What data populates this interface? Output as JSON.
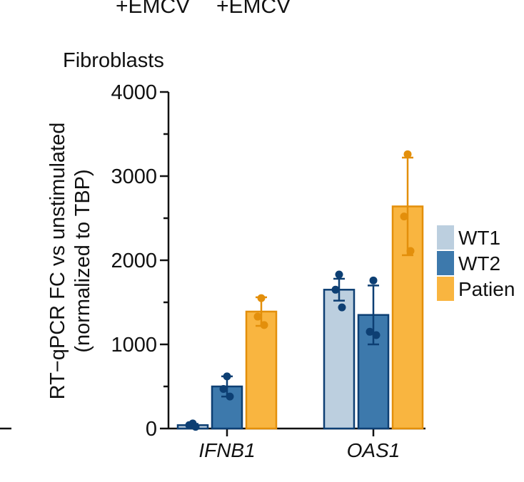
{
  "header_fragment": {
    "left": "+EMCV",
    "right": "+EMCV"
  },
  "chart_data": {
    "type": "bar",
    "title": "Fibroblasts",
    "ylabel_line1": "RT−qPCR FC vs unstimulated",
    "ylabel_line2": "(normalized to TBP)",
    "ylim": [
      0,
      4000
    ],
    "yticks": [
      0,
      1000,
      2000,
      3000,
      4000
    ],
    "categories": [
      "IFNB1",
      "OAS1"
    ],
    "series": [
      {
        "name": "WT1",
        "color": "#bccfdf",
        "edge": "#0d3f73",
        "values": [
          40,
          1650
        ],
        "errors": [
          15,
          130
        ],
        "points": [
          [
            60,
            40,
            20
          ],
          [
            1830,
            1650,
            1440
          ]
        ]
      },
      {
        "name": "WT2",
        "color": "#3d79ac",
        "edge": "#0d3f73",
        "values": [
          500,
          1350
        ],
        "errors": [
          120,
          350
        ],
        "points": [
          [
            620,
            470,
            380
          ],
          [
            1760,
            1150,
            1110
          ]
        ]
      },
      {
        "name": "Patien",
        "color": "#f9b540",
        "edge": "#e38f0b",
        "values": [
          1390,
          2640
        ],
        "errors": [
          170,
          580
        ],
        "points": [
          [
            1550,
            1330,
            1230
          ],
          [
            3260,
            2520,
            2110
          ]
        ]
      }
    ],
    "legend_position": "right",
    "grid": false
  }
}
